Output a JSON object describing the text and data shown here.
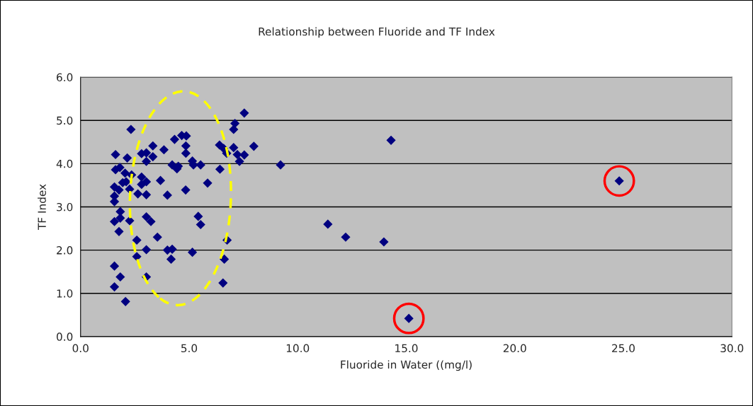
{
  "chart_data": {
    "type": "scatter",
    "title": "Relationship between Fluoride and TF Index",
    "xlabel": "Fluoride in Water ((mg/l)",
    "ylabel": "TF Index",
    "x": [
      2.32,
      1.61,
      2.15,
      2.81,
      3.03,
      3.33,
      3.84,
      3.33,
      3.03,
      1.61,
      1.81,
      2.05,
      2.35,
      1.94,
      2.1,
      1.56,
      1.77,
      2.26,
      2.81,
      3.03,
      2.81,
      3.68,
      2.64,
      3.03,
      1.56,
      1.56,
      4.0,
      1.83,
      1.56,
      1.83,
      2.26,
      3.03,
      3.24,
      1.77,
      2.59,
      3.54,
      3.03,
      2.59,
      4.0,
      4.17,
      1.56,
      1.83,
      3.03,
      1.56,
      2.07,
      7.54,
      7.11,
      7.05,
      4.33,
      4.66,
      4.87,
      4.85,
      4.85,
      6.4,
      6.59,
      6.73,
      7.05,
      7.22,
      7.54,
      7.32,
      7.98,
      4.22,
      4.5,
      4.44,
      5.15,
      5.2,
      5.53,
      6.42,
      5.85,
      4.84,
      5.42,
      5.53,
      6.75,
      4.22,
      5.15,
      6.62,
      6.56,
      9.21,
      11.39,
      12.21,
      13.97,
      14.3,
      15.12,
      24.81
    ],
    "values": [
      4.79,
      4.21,
      4.13,
      4.23,
      4.25,
      4.41,
      4.32,
      4.16,
      4.05,
      3.86,
      3.91,
      3.78,
      3.74,
      3.56,
      3.58,
      3.46,
      3.39,
      3.41,
      3.69,
      3.58,
      3.52,
      3.61,
      3.3,
      3.28,
      3.25,
      3.12,
      3.27,
      2.89,
      2.66,
      2.74,
      2.68,
      2.77,
      2.66,
      2.43,
      2.23,
      2.3,
      2.01,
      1.85,
      2.0,
      1.79,
      1.63,
      1.38,
      1.38,
      1.15,
      0.81,
      5.17,
      4.93,
      4.79,
      4.56,
      4.65,
      4.64,
      4.41,
      4.24,
      4.43,
      4.35,
      4.24,
      4.37,
      4.21,
      4.2,
      4.05,
      4.4,
      3.97,
      3.94,
      3.88,
      4.06,
      3.97,
      3.97,
      3.87,
      3.55,
      3.39,
      2.78,
      2.59,
      2.23,
      2.02,
      1.95,
      1.79,
      1.24,
      3.97,
      2.6,
      2.3,
      2.19,
      4.54,
      0.42,
      3.6
    ],
    "color": "#000080",
    "marker": "diamond",
    "xlim": [
      0,
      30
    ],
    "ylim": [
      0,
      6
    ],
    "xticks": [
      {
        "value": 0,
        "label": "0.0"
      },
      {
        "value": 5,
        "label": "5.0"
      },
      {
        "value": 10,
        "label": "10.0"
      },
      {
        "value": 15,
        "label": "15.0"
      },
      {
        "value": 20,
        "label": "20.0"
      },
      {
        "value": 25,
        "label": "25.0"
      },
      {
        "value": 30,
        "label": "30.0"
      }
    ],
    "yticks": [
      {
        "value": 0,
        "label": "0.0"
      },
      {
        "value": 1,
        "label": "1.0"
      },
      {
        "value": 2,
        "label": "2.0"
      },
      {
        "value": 3,
        "label": "3.0"
      },
      {
        "value": 4,
        "label": "4.0"
      },
      {
        "value": 5,
        "label": "5.0"
      },
      {
        "value": 6,
        "label": "6.0"
      }
    ],
    "grid": "y"
  }
}
